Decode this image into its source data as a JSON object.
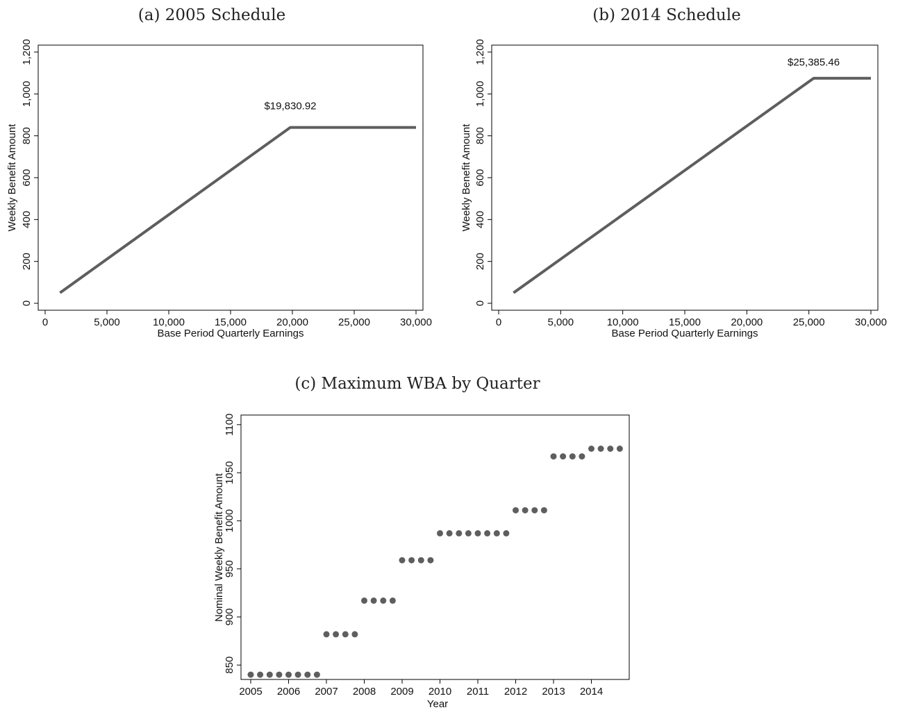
{
  "chart_data": [
    {
      "type": "line",
      "title": "(a) 2005 Schedule",
      "xlabel": "Base Period Quarterly Earnings",
      "ylabel": "Weekly Benefit Amount",
      "xlim": [
        0,
        30000
      ],
      "ylim": [
        0,
        1200
      ],
      "xticks": [
        0,
        5000,
        10000,
        15000,
        20000,
        25000,
        30000
      ],
      "xtick_labels": [
        "0",
        "5,000",
        "10,000",
        "15,000",
        "20,000",
        "25,000",
        "30,000"
      ],
      "yticks": [
        0,
        200,
        400,
        600,
        800,
        1000,
        1200
      ],
      "ytick_labels": [
        "0",
        "200",
        "400",
        "600",
        "800",
        "1,000",
        "1,200"
      ],
      "x": [
        1200,
        19830.92,
        30000
      ],
      "y": [
        50,
        840,
        840
      ],
      "annotation": {
        "text": "$19,830.92",
        "x": 19830.92,
        "y": 840
      },
      "grid": false
    },
    {
      "type": "line",
      "title": "(b) 2014 Schedule",
      "xlabel": "Base Period Quarterly Earnings",
      "ylabel": "Weekly Benefit Amount",
      "xlim": [
        0,
        30000
      ],
      "ylim": [
        0,
        1200
      ],
      "xticks": [
        0,
        5000,
        10000,
        15000,
        20000,
        25000,
        30000
      ],
      "xtick_labels": [
        "0",
        "5,000",
        "10,000",
        "15,000",
        "20,000",
        "25,000",
        "30,000"
      ],
      "yticks": [
        0,
        200,
        400,
        600,
        800,
        1000,
        1200
      ],
      "ytick_labels": [
        "0",
        "200",
        "400",
        "600",
        "800",
        "1,000",
        "1,200"
      ],
      "x": [
        1200,
        25385.46,
        30000
      ],
      "y": [
        50,
        1075,
        1075
      ],
      "annotation": {
        "text": "$25,385.46",
        "x": 25385.46,
        "y": 1075
      },
      "grid": false
    },
    {
      "type": "scatter",
      "title": "(c) Maximum WBA by Quarter",
      "xlabel": "Year",
      "ylabel": "Nominal Weekly Benefit Amount",
      "xlim": [
        2005,
        2015
      ],
      "ylim": [
        835,
        1110
      ],
      "xticks": [
        2005,
        2006,
        2007,
        2008,
        2009,
        2010,
        2011,
        2012,
        2013,
        2014
      ],
      "xtick_labels": [
        "2005",
        "2006",
        "2007",
        "2008",
        "2009",
        "2010",
        "2011",
        "2012",
        "2013",
        "2014"
      ],
      "yticks": [
        850,
        900,
        950,
        1000,
        1050,
        1100
      ],
      "ytick_labels": [
        "850",
        "900",
        "950",
        "1000",
        "1050",
        "1100"
      ],
      "x": [
        2005.0,
        2005.25,
        2005.5,
        2005.75,
        2006.0,
        2006.25,
        2006.5,
        2006.75,
        2007.0,
        2007.25,
        2007.5,
        2007.75,
        2008.0,
        2008.25,
        2008.5,
        2008.75,
        2009.0,
        2009.25,
        2009.5,
        2009.75,
        2010.0,
        2010.25,
        2010.5,
        2010.75,
        2011.0,
        2011.25,
        2011.5,
        2011.75,
        2012.0,
        2012.25,
        2012.5,
        2012.75,
        2013.0,
        2013.25,
        2013.5,
        2013.75,
        2014.0,
        2014.25,
        2014.5,
        2014.75
      ],
      "y": [
        840,
        840,
        840,
        840,
        840,
        840,
        840,
        840,
        882,
        882,
        882,
        882,
        917,
        917,
        917,
        917,
        959,
        959,
        959,
        959,
        987,
        987,
        987,
        987,
        987,
        987,
        987,
        987,
        1011,
        1011,
        1011,
        1011,
        1067,
        1067,
        1067,
        1067,
        1075,
        1075,
        1075,
        1075
      ],
      "grid": false
    }
  ],
  "colors": {
    "series": "#5e5e5e",
    "axis": "#000000"
  }
}
